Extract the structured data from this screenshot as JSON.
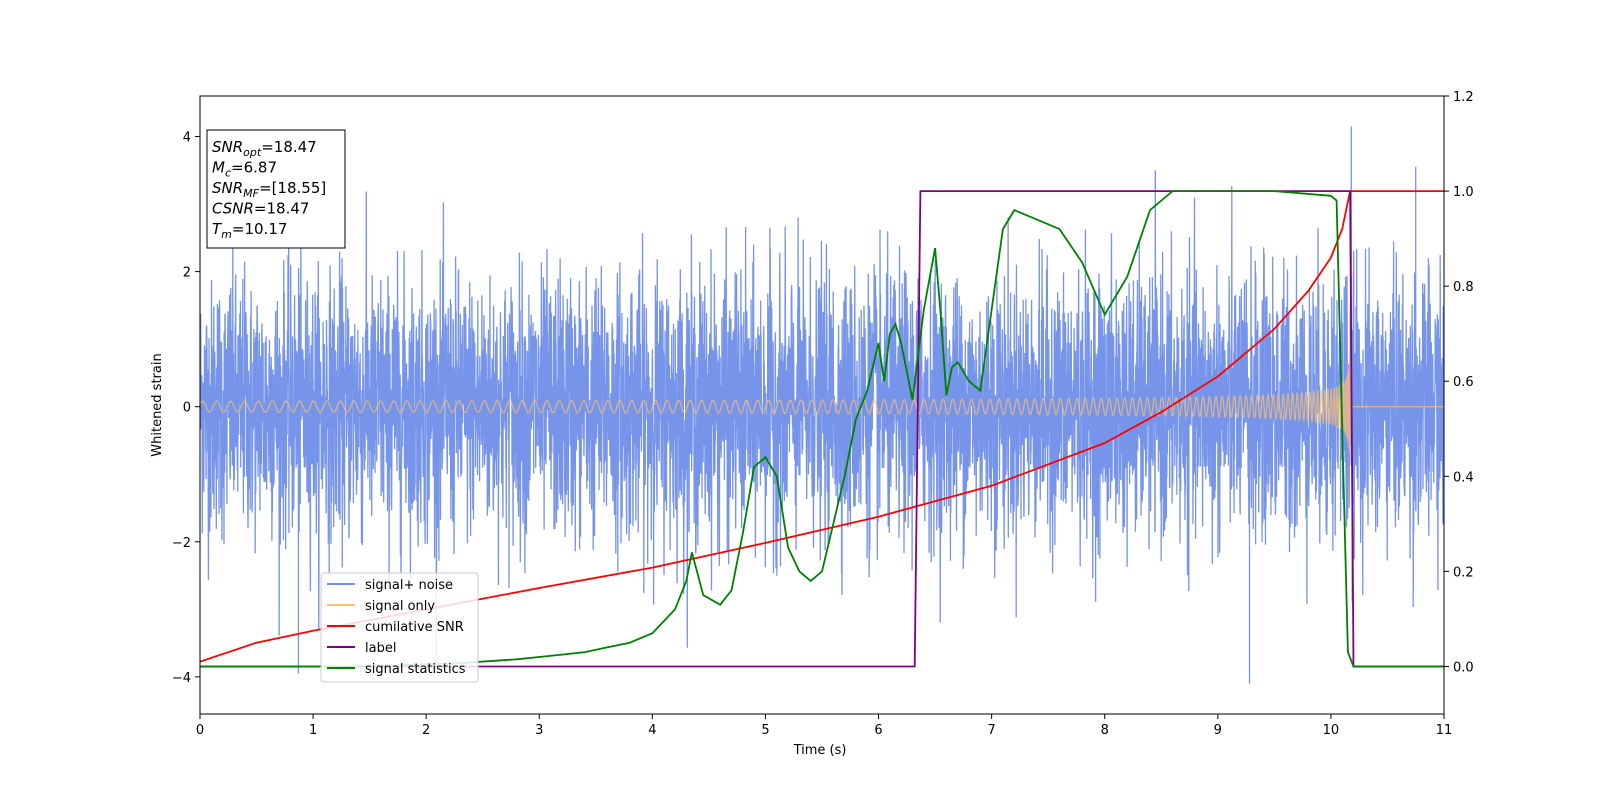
{
  "chart_data": {
    "type": "line",
    "title": "",
    "xlabel": "Time (s)",
    "ylabel": "Whitened strain",
    "y2label": "",
    "xlim": [
      0,
      11
    ],
    "ylim": [
      -4.55,
      4.6
    ],
    "y2lim": [
      -0.1,
      1.2
    ],
    "x_ticks": [
      "0",
      "1",
      "2",
      "3",
      "4",
      "5",
      "6",
      "7",
      "8",
      "9",
      "10",
      "11"
    ],
    "y_ticks": [
      "−4",
      "−2",
      "0",
      "2",
      "4"
    ],
    "y2_ticks": [
      "0.0",
      "0.2",
      "0.4",
      "0.6",
      "0.8",
      "1.0",
      "1.2"
    ],
    "grid": false,
    "legend_position": "lower-left",
    "series": [
      {
        "name": "signal+ noise",
        "axis": "left",
        "color": "#6f8ee8",
        "style": "noisy band",
        "t_end": 11,
        "noise_std": 1.0,
        "peak_values": [
          4.15,
          3.55,
          -4.1,
          -3.95
        ]
      },
      {
        "name": "signal only",
        "axis": "left",
        "color": "#ffc06e",
        "style": "chirp",
        "chirp": {
          "t_merge": 10.17,
          "amp_start": 0.08,
          "amp_merge": 1.0,
          "freq_start_hz": 8
        }
      },
      {
        "name": "cumilative SNR",
        "axis": "right",
        "color": "#ff0000",
        "x": [
          0,
          0.5,
          1,
          2,
          3,
          4,
          5,
          6,
          7,
          8,
          8.5,
          9,
          9.5,
          9.8,
          10,
          10.1,
          10.17,
          11
        ],
        "values": [
          0.01,
          0.05,
          0.075,
          0.12,
          0.165,
          0.208,
          0.26,
          0.315,
          0.38,
          0.47,
          0.535,
          0.61,
          0.71,
          0.79,
          0.86,
          0.92,
          1.0,
          1.0
        ]
      },
      {
        "name": "label",
        "axis": "right",
        "color": "#800080",
        "x": [
          0,
          6.32,
          6.37,
          10.17,
          10.2,
          11
        ],
        "values": [
          0.0,
          0.0,
          1.0,
          1.0,
          0.0,
          0.0
        ]
      },
      {
        "name": "signal statistics",
        "axis": "right",
        "color": "#008000",
        "x": [
          0,
          0.5,
          1,
          1.5,
          2,
          2.3,
          2.6,
          2.8,
          3,
          3.2,
          3.4,
          3.6,
          3.8,
          4.0,
          4.2,
          4.3,
          4.35,
          4.45,
          4.6,
          4.7,
          4.8,
          4.9,
          5.0,
          5.1,
          5.2,
          5.3,
          5.4,
          5.5,
          5.6,
          5.7,
          5.8,
          5.9,
          6.0,
          6.05,
          6.1,
          6.15,
          6.2,
          6.3,
          6.4,
          6.5,
          6.55,
          6.6,
          6.65,
          6.7,
          6.8,
          6.9,
          7.0,
          7.1,
          7.2,
          7.4,
          7.6,
          7.8,
          8.0,
          8.2,
          8.4,
          8.6,
          8.8,
          9.0,
          9.5,
          10.0,
          10.05,
          10.1,
          10.15,
          10.2,
          10.25,
          11
        ],
        "values": [
          0.0,
          0.0,
          0.0,
          0.0,
          0.005,
          0.007,
          0.012,
          0.015,
          0.02,
          0.025,
          0.03,
          0.04,
          0.05,
          0.07,
          0.12,
          0.18,
          0.24,
          0.15,
          0.13,
          0.16,
          0.28,
          0.42,
          0.44,
          0.4,
          0.25,
          0.2,
          0.18,
          0.2,
          0.3,
          0.4,
          0.52,
          0.58,
          0.68,
          0.6,
          0.7,
          0.72,
          0.68,
          0.56,
          0.75,
          0.88,
          0.74,
          0.57,
          0.63,
          0.64,
          0.6,
          0.58,
          0.75,
          0.92,
          0.96,
          0.94,
          0.92,
          0.85,
          0.74,
          0.82,
          0.96,
          1.0,
          1.0,
          1.0,
          1.0,
          0.99,
          0.98,
          0.5,
          0.03,
          0.0,
          0.0,
          0.0
        ]
      }
    ],
    "annotations": [
      {
        "text": "SNR",
        "sub": "opt",
        "value": "=18.47"
      },
      {
        "text": "M",
        "sub": "c",
        "value": "=6.87"
      },
      {
        "text": "SNR",
        "sub": "MF",
        "value": "=[18.55]"
      },
      {
        "text": "CSNR",
        "sub": "",
        "value": "=18.47"
      },
      {
        "text": "T",
        "sub": "m",
        "value": "=10.17"
      }
    ]
  }
}
